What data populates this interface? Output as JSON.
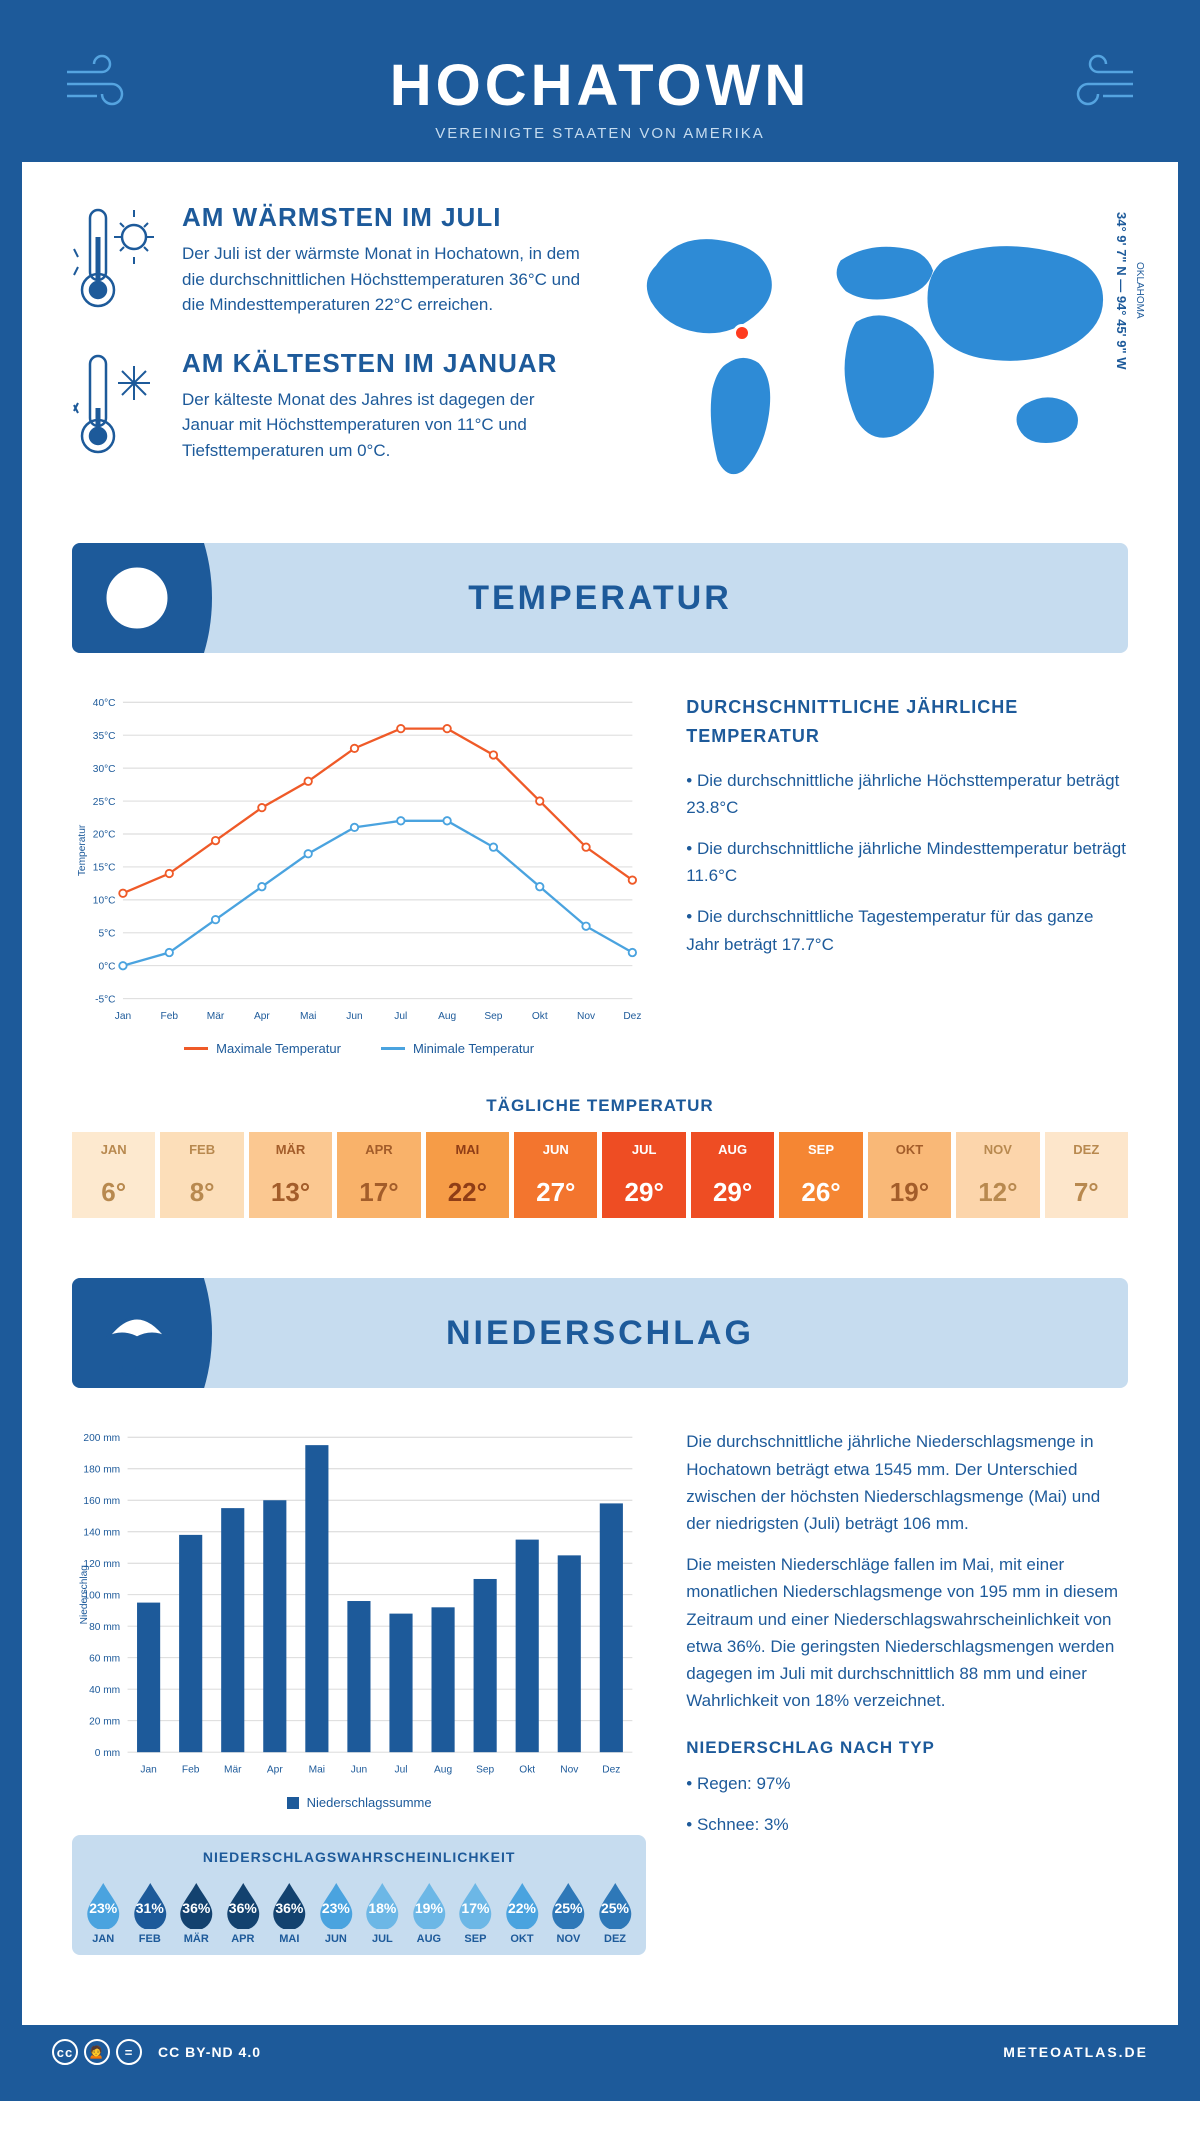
{
  "header": {
    "title": "HOCHATOWN",
    "subtitle": "VEREINIGTE STAATEN VON AMERIKA"
  },
  "warmest": {
    "title": "AM WÄRMSTEN IM JULI",
    "text": "Der Juli ist der wärmste Monat in Hochatown, in dem die durchschnittlichen Höchsttemperaturen 36°C und die Mindesttemperaturen 22°C erreichen."
  },
  "coldest": {
    "title": "AM KÄLTESTEN IM JANUAR",
    "text": "Der kälteste Monat des Jahres ist dagegen der Januar mit Höchsttemperaturen von 11°C und Tiefsttemperaturen um 0°C."
  },
  "location": {
    "state": "OKLAHOMA",
    "coords": "34° 9' 7\" N — 94° 45' 9\" W"
  },
  "temp_section": {
    "heading": "TEMPERATUR",
    "stats_title": "DURCHSCHNITTLICHE JÄHRLICHE TEMPERATUR",
    "bullets": [
      "• Die durchschnittliche jährliche Höchsttemperatur beträgt 23.8°C",
      "• Die durchschnittliche jährliche Mindesttemperatur beträgt 11.6°C",
      "• Die durchschnittliche Tagestemperatur für das ganze Jahr beträgt 17.7°C"
    ],
    "chart": {
      "type": "line",
      "months": [
        "Jan",
        "Feb",
        "Mär",
        "Apr",
        "Mai",
        "Jun",
        "Jul",
        "Aug",
        "Sep",
        "Okt",
        "Nov",
        "Dez"
      ],
      "max_values": [
        11,
        14,
        19,
        24,
        28,
        33,
        36,
        36,
        32,
        25,
        18,
        13
      ],
      "min_values": [
        0,
        2,
        7,
        12,
        17,
        21,
        22,
        22,
        18,
        12,
        6,
        2
      ],
      "max_color": "#ef5a28",
      "min_color": "#4aa3df",
      "ylim": [
        -5,
        40
      ],
      "ystep": 5,
      "ylabel": "Temperatur",
      "legend_max": "Maximale Temperatur",
      "legend_min": "Minimale Temperatur"
    },
    "daily_title": "TÄGLICHE TEMPERATUR",
    "daily_months": [
      "JAN",
      "FEB",
      "MÄR",
      "APR",
      "MAI",
      "JUN",
      "JUL",
      "AUG",
      "SEP",
      "OKT",
      "NOV",
      "DEZ"
    ],
    "daily_values": [
      "6°",
      "8°",
      "13°",
      "17°",
      "22°",
      "27°",
      "29°",
      "29°",
      "26°",
      "19°",
      "12°",
      "7°"
    ],
    "daily_bg_colors": [
      "#fde9cf",
      "#fcdeb9",
      "#fbc891",
      "#f9b26a",
      "#f69c47",
      "#f3752e",
      "#ee4d23",
      "#ee4d23",
      "#f58633",
      "#f9b877",
      "#fcd5ab",
      "#fde6cb"
    ],
    "daily_text_colors": [
      "#b8894f",
      "#b8894f",
      "#a35d2a",
      "#a35d2a",
      "#8f3d16",
      "#ffffff",
      "#ffffff",
      "#ffffff",
      "#ffffff",
      "#a35d2a",
      "#b8894f",
      "#b8894f"
    ]
  },
  "precip_section": {
    "heading": "NIEDERSCHLAG",
    "chart": {
      "type": "bar",
      "months": [
        "Jan",
        "Feb",
        "Mär",
        "Apr",
        "Mai",
        "Jun",
        "Jul",
        "Aug",
        "Sep",
        "Okt",
        "Nov",
        "Dez"
      ],
      "values": [
        95,
        138,
        155,
        160,
        195,
        96,
        88,
        92,
        110,
        135,
        125,
        158
      ],
      "bar_color": "#1d5a9a",
      "ylim": [
        0,
        200
      ],
      "ystep": 20,
      "ylabel": "Niederschlag",
      "legend": "Niederschlagssumme"
    },
    "text1": "Die durchschnittliche jährliche Niederschlagsmenge in Hochatown beträgt etwa 1545 mm. Der Unterschied zwischen der höchsten Niederschlagsmenge (Mai) und der niedrigsten (Juli) beträgt 106 mm.",
    "text2": "Die meisten Niederschläge fallen im Mai, mit einer monatlichen Niederschlagsmenge von 195 mm in diesem Zeitraum und einer Niederschlagswahrscheinlichkeit von etwa 36%. Die geringsten Niederschlagsmengen werden dagegen im Juli mit durchschnittlich 88 mm und einer Wahrlichkeit von 18% verzeichnet.",
    "type_title": "NIEDERSCHLAG NACH TYP",
    "type_bullets": [
      "• Regen: 97%",
      "• Schnee: 3%"
    ],
    "prob_title": "NIEDERSCHLAGSWAHRSCHEINLICHKEIT",
    "prob_months": [
      "JAN",
      "FEB",
      "MÄR",
      "APR",
      "MAI",
      "JUN",
      "JUL",
      "AUG",
      "SEP",
      "OKT",
      "NOV",
      "DEZ"
    ],
    "prob_values": [
      "23%",
      "31%",
      "36%",
      "36%",
      "36%",
      "23%",
      "18%",
      "19%",
      "17%",
      "22%",
      "25%",
      "25%"
    ],
    "prob_colors": [
      "#4aa3df",
      "#1d5a9a",
      "#13426f",
      "#13426f",
      "#13426f",
      "#4aa3df",
      "#6cb7e6",
      "#6cb7e6",
      "#6cb7e6",
      "#4aa3df",
      "#2e78b8",
      "#2e78b8"
    ]
  },
  "footer": {
    "license": "CC BY-ND 4.0",
    "site": "METEOATLAS.DE"
  }
}
